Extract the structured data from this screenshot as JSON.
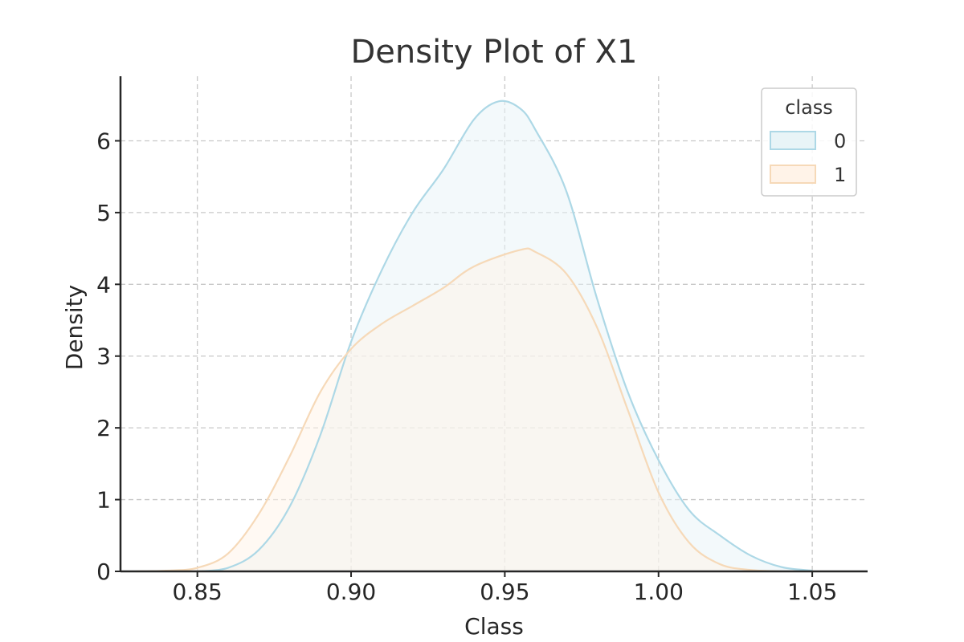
{
  "chart_data": {
    "type": "area",
    "title": "Density Plot of X1",
    "xlabel": "Class",
    "ylabel": "Density",
    "xlim": [
      0.825,
      1.068
    ],
    "ylim": [
      0,
      6.9
    ],
    "x_ticks": [
      "0.85",
      "0.90",
      "0.95",
      "1.00",
      "1.05"
    ],
    "x_tick_values": [
      0.85,
      0.9,
      0.95,
      1.0,
      1.05
    ],
    "y_ticks": [
      "0",
      "1",
      "2",
      "3",
      "4",
      "5",
      "6"
    ],
    "y_tick_values": [
      0,
      1,
      2,
      3,
      4,
      5,
      6
    ],
    "grid": true,
    "legend": {
      "title": "class",
      "position": "top-right"
    },
    "series": [
      {
        "name": "0",
        "color": "#add8e6",
        "fill": "#e8f4f7",
        "points": [
          [
            0.85,
            0.0
          ],
          [
            0.86,
            0.05
          ],
          [
            0.87,
            0.3
          ],
          [
            0.88,
            0.9
          ],
          [
            0.89,
            1.9
          ],
          [
            0.9,
            3.2
          ],
          [
            0.91,
            4.2
          ],
          [
            0.92,
            5.0
          ],
          [
            0.93,
            5.6
          ],
          [
            0.94,
            6.3
          ],
          [
            0.948,
            6.55
          ],
          [
            0.955,
            6.45
          ],
          [
            0.96,
            6.15
          ],
          [
            0.97,
            5.3
          ],
          [
            0.98,
            3.8
          ],
          [
            0.99,
            2.5
          ],
          [
            1.0,
            1.55
          ],
          [
            1.01,
            0.85
          ],
          [
            1.02,
            0.5
          ],
          [
            1.03,
            0.22
          ],
          [
            1.04,
            0.06
          ],
          [
            1.05,
            0.01
          ]
        ]
      },
      {
        "name": "1",
        "color": "#f6d9b8",
        "fill": "#fff3e8",
        "points": [
          [
            0.83,
            0.0
          ],
          [
            0.84,
            0.01
          ],
          [
            0.85,
            0.05
          ],
          [
            0.86,
            0.25
          ],
          [
            0.87,
            0.8
          ],
          [
            0.88,
            1.6
          ],
          [
            0.89,
            2.5
          ],
          [
            0.9,
            3.1
          ],
          [
            0.91,
            3.45
          ],
          [
            0.92,
            3.7
          ],
          [
            0.93,
            3.95
          ],
          [
            0.94,
            4.25
          ],
          [
            0.955,
            4.48
          ],
          [
            0.96,
            4.45
          ],
          [
            0.97,
            4.15
          ],
          [
            0.98,
            3.4
          ],
          [
            0.99,
            2.25
          ],
          [
            1.0,
            1.1
          ],
          [
            1.01,
            0.4
          ],
          [
            1.02,
            0.1
          ],
          [
            1.03,
            0.02
          ],
          [
            1.04,
            0.0
          ]
        ]
      }
    ]
  }
}
